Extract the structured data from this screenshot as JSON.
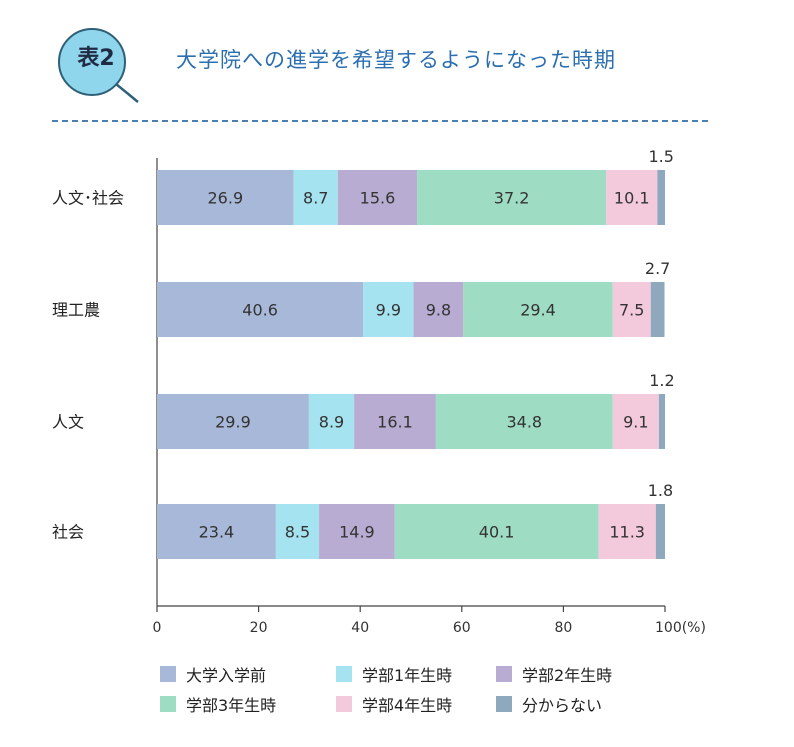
{
  "header": {
    "badge": "表2",
    "title": "大学院への進学を希望するようになった時期"
  },
  "colors": {
    "s0": "#a8b8d8",
    "s1": "#a6e3f0",
    "s2": "#b9acd2",
    "s3": "#9fdcc4",
    "s4": "#f3c9dc",
    "s5": "#8ea9bd",
    "badge_fill": "#8fd6ec",
    "badge_ring": "#2f5f78"
  },
  "chart_data": {
    "type": "bar",
    "orientation": "horizontal",
    "stacked": true,
    "categories": [
      "人文･社会",
      "理工農",
      "人文",
      "社会"
    ],
    "series": [
      {
        "name": "大学入学前",
        "values": [
          26.9,
          40.6,
          29.9,
          23.4
        ]
      },
      {
        "name": "学部1年生時",
        "values": [
          8.7,
          9.9,
          8.9,
          8.5
        ]
      },
      {
        "name": "学部2年生時",
        "values": [
          15.6,
          9.8,
          16.1,
          14.9
        ]
      },
      {
        "name": "学部3年生時",
        "values": [
          37.2,
          29.4,
          34.8,
          40.1
        ]
      },
      {
        "name": "学部4年生時",
        "values": [
          10.1,
          7.5,
          9.1,
          11.3
        ]
      },
      {
        "name": "分からない",
        "values": [
          1.5,
          2.7,
          1.2,
          1.8
        ]
      }
    ],
    "value_labels": [
      [
        "26.9",
        "8.7",
        "15.6",
        "37.2",
        "10.1",
        "1.5"
      ],
      [
        "40.6",
        "9.9",
        "9.8",
        "29.4",
        "7.5",
        "2.7"
      ],
      [
        "29.9",
        "8.9",
        "16.1",
        "34.8",
        "9.1",
        "1.2"
      ],
      [
        "23.4",
        "8.5",
        "14.9",
        "40.1",
        "11.3",
        "1.8"
      ]
    ],
    "xlim": [
      0,
      100
    ],
    "xticks": [
      "0",
      "20",
      "40",
      "60",
      "80",
      "100"
    ],
    "xunit": "(%)",
    "legend_position": "bottom"
  }
}
